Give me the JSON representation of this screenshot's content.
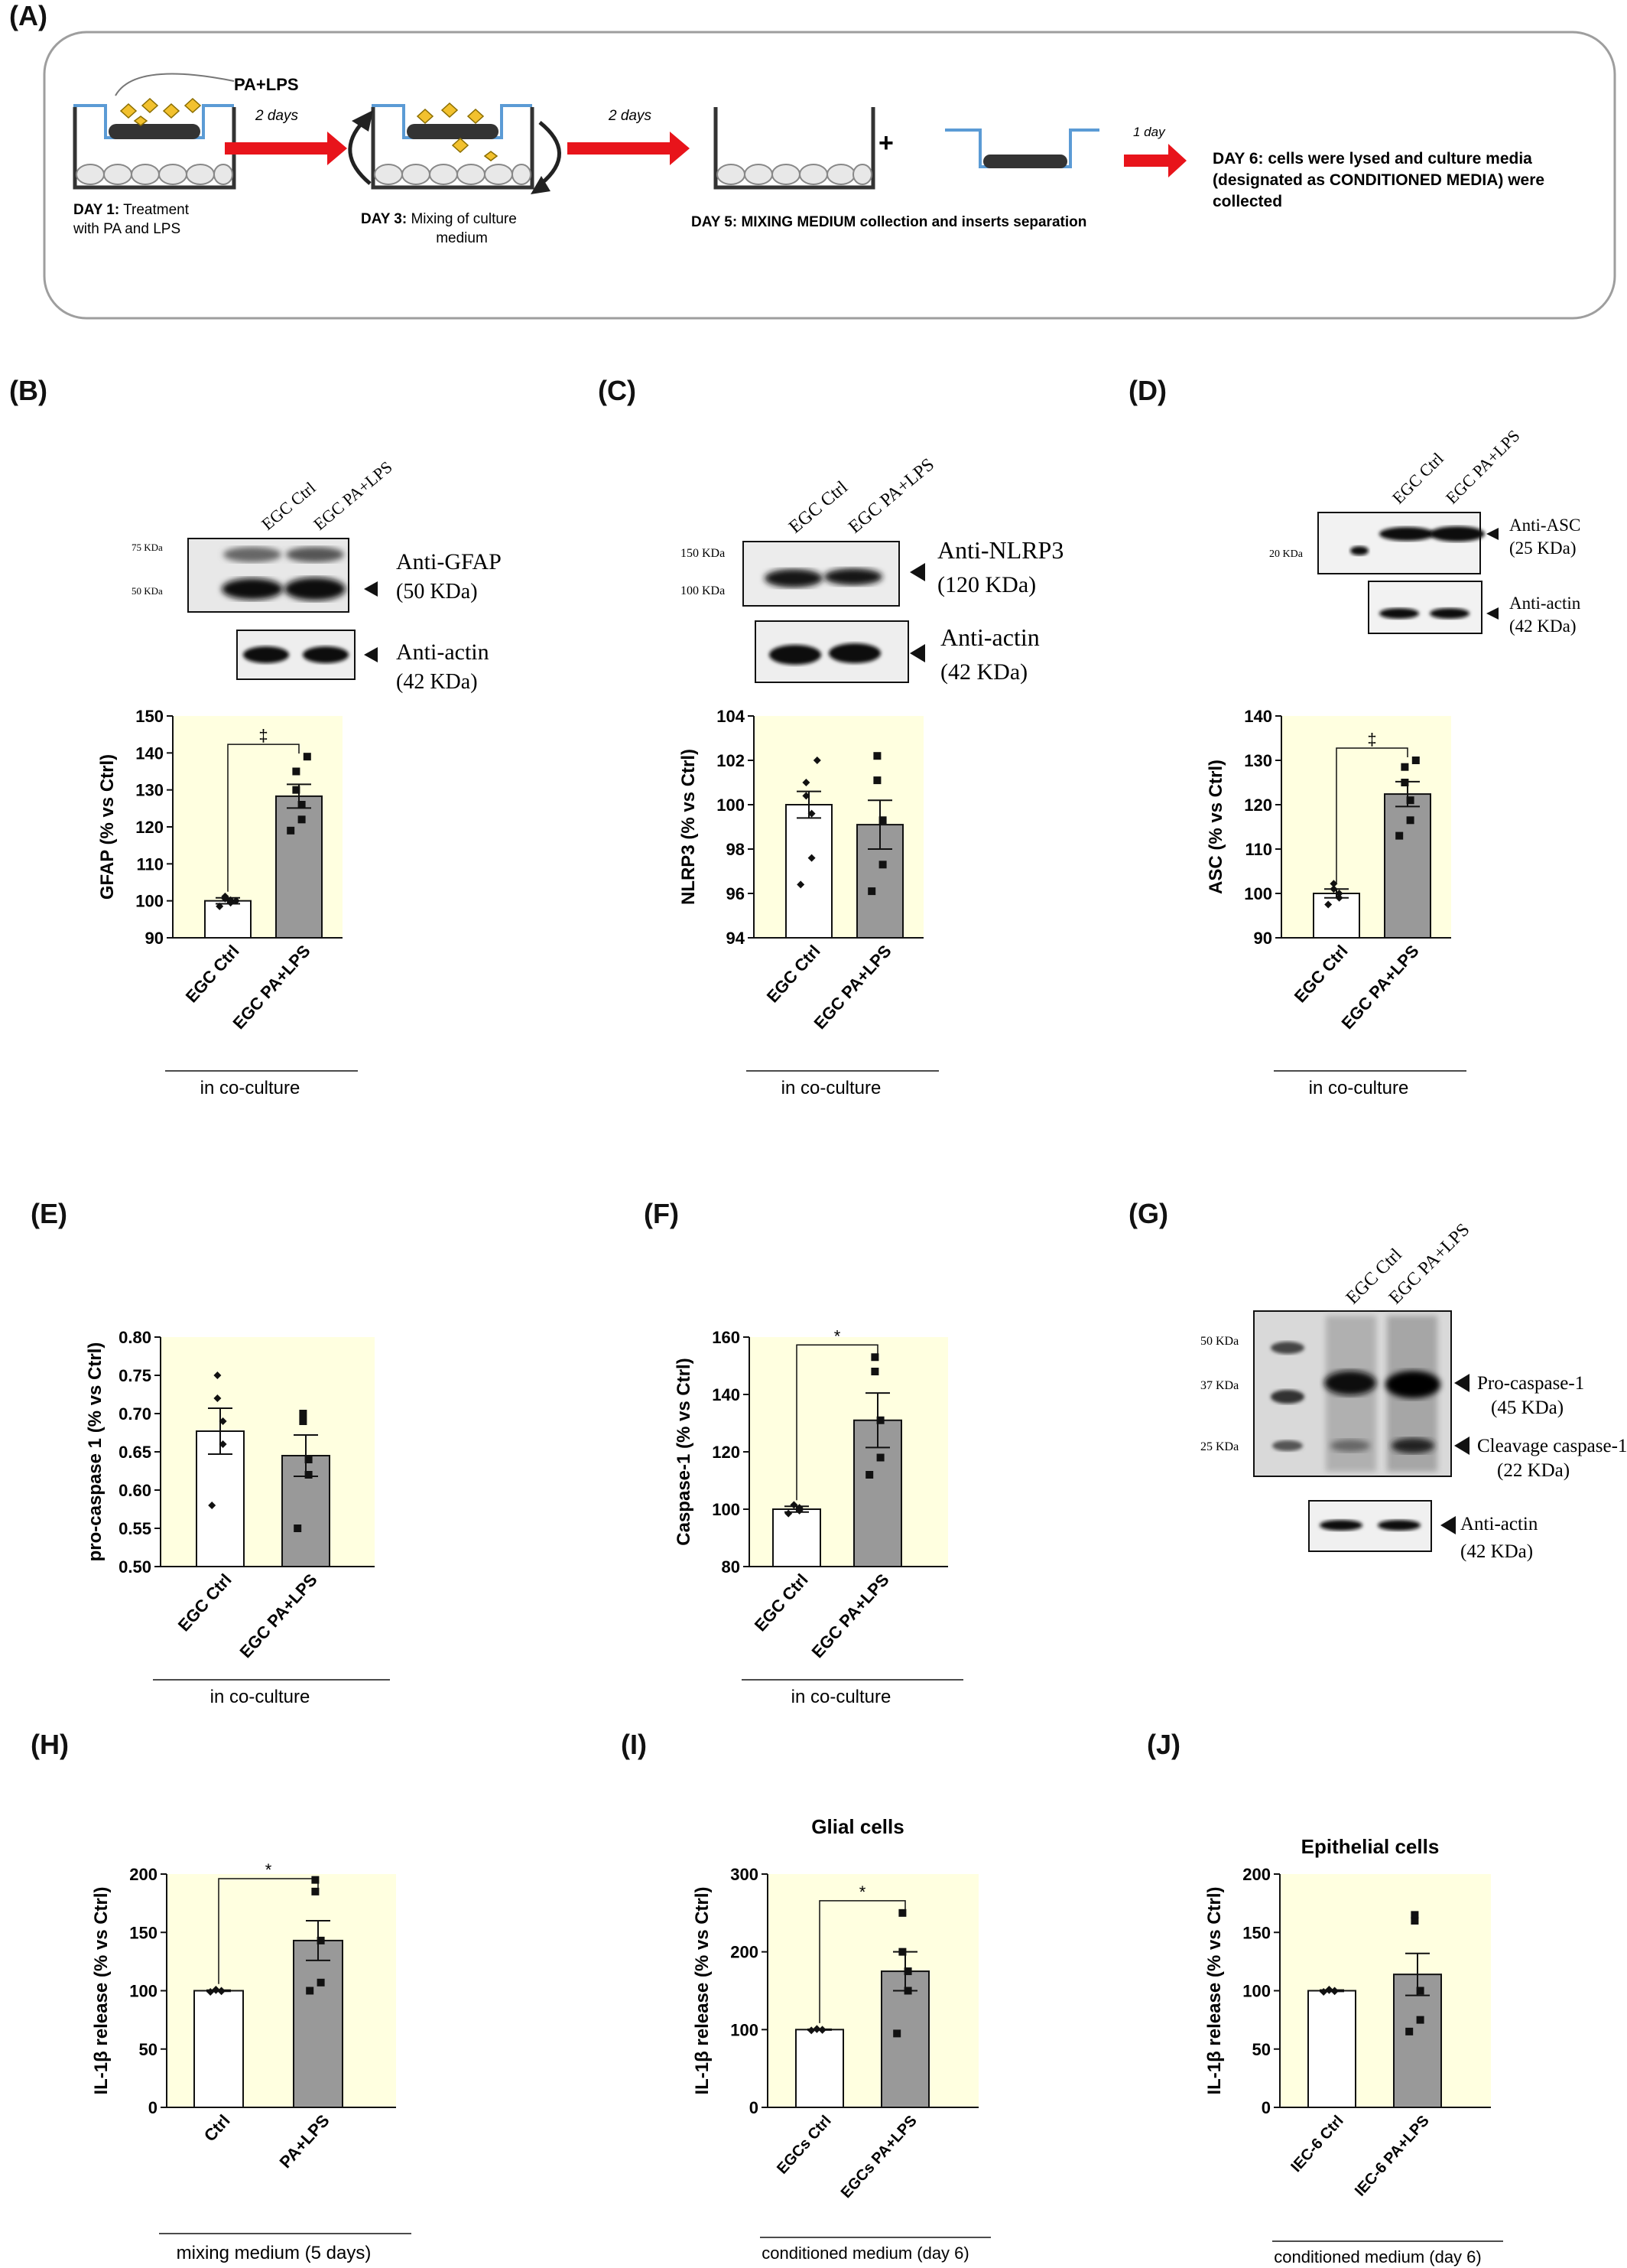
{
  "panel_labels": {
    "A": "(A)",
    "B": "(B)",
    "C": "(C)",
    "D": "(D)",
    "E": "(E)",
    "F": "(F)",
    "G": "(G)",
    "H": "(H)",
    "I": "(I)",
    "J": "(J)"
  },
  "schematic": {
    "treatment": "PA+LPS",
    "arrow1": "2 days",
    "arrow2": "2 days",
    "arrow3": "1 day",
    "plus": "+",
    "day1_bold": "DAY 1:",
    "day1_rest": " Treatment",
    "day1_line2": "with PA and LPS",
    "day3_bold": "DAY 3:",
    "day3_rest": " Mixing of culture",
    "day3_line2": "medium",
    "day5_bold": "DAY 5:",
    "day5_rest": " MIXING MEDIUM collection and inserts separation",
    "day6_bold": "DAY 6:",
    "day6_rest": " cells were lysed and culture media",
    "day6_line2": "(designated as CONDITIONED MEDIA) were",
    "day6_line3": "collected",
    "colors": {
      "arrow": "#e8141b",
      "insert": "#5b9bd5",
      "particle": "#f2c12e",
      "cell_dark": "#333333"
    }
  },
  "blots": {
    "B": {
      "lanes": [
        "EGC Ctrl",
        "EGC PA+LPS"
      ],
      "markers": [
        "75 KDa",
        "50 KDa"
      ],
      "band1": "Anti-GFAP",
      "band1_kda": "(50 KDa)",
      "band2": "Anti-actin",
      "band2_kda": "(42 KDa)"
    },
    "C": {
      "lanes": [
        "EGC Ctrl",
        "EGC PA+LPS"
      ],
      "markers": [
        "150 KDa",
        "100 KDa"
      ],
      "band1": "Anti-NLRP3",
      "band1_kda": "(120 KDa)",
      "band2": "Anti-actin",
      "band2_kda": "(42 KDa)"
    },
    "D": {
      "lanes": [
        "EGC Ctrl",
        "EGC PA+LPS"
      ],
      "markers": [
        "20 KDa"
      ],
      "band1": "Anti-ASC",
      "band1_kda": "(25 KDa)",
      "band2": "Anti-actin",
      "band2_kda": "(42 KDa)"
    },
    "G": {
      "lanes": [
        "EGC Ctrl",
        "EGC PA+LPS"
      ],
      "markers": [
        "50 KDa",
        "37 KDa",
        "25 KDa"
      ],
      "band1": "Pro-caspase-1",
      "band1_kda": "(45 KDa)",
      "band_mid": "Cleavage caspase-1",
      "band_mid_kda": "(22 KDa)",
      "band2": "Anti-actin",
      "band2_kda": "(42 KDa)"
    }
  },
  "chart_data": [
    {
      "id": "B",
      "type": "bar",
      "categories": [
        "EGC Ctrl",
        "EGC PA+LPS"
      ],
      "values": [
        100,
        128.3
      ],
      "errors": [
        0.8,
        3.2
      ],
      "points": [
        [
          98.5,
          99.5,
          100.2,
          100.6,
          101.2,
          100
        ],
        [
          119,
          122,
          126,
          130,
          135,
          139
        ]
      ],
      "ylabel": "GFAP (% vs Ctrl)",
      "ylim": [
        90,
        150
      ],
      "yticks": [
        90,
        100,
        110,
        120,
        130,
        140,
        150
      ],
      "significance": "‡",
      "group_label": "in co-culture",
      "colors": [
        "#ffffff",
        "#999999"
      ],
      "background": "#ffffe0"
    },
    {
      "id": "C",
      "type": "bar",
      "categories": [
        "EGC Ctrl",
        "EGC PA+LPS"
      ],
      "values": [
        100,
        99.1
      ],
      "errors": [
        0.6,
        1.1
      ],
      "points": [
        [
          96.4,
          97.6,
          99.6,
          100.4,
          101,
          102
        ],
        [
          96.1,
          97.3,
          99.3,
          101.1,
          102.2
        ]
      ],
      "ylabel": "NLRP3 (% vs Ctrl)",
      "ylim": [
        94,
        104
      ],
      "yticks": [
        94,
        96,
        98,
        100,
        102,
        104
      ],
      "significance": "",
      "group_label": "in co-culture",
      "colors": [
        "#ffffff",
        "#999999"
      ],
      "background": "#ffffe0"
    },
    {
      "id": "D",
      "type": "bar",
      "categories": [
        "EGC Ctrl",
        "EGC PA+LPS"
      ],
      "values": [
        100,
        122.4
      ],
      "errors": [
        1.0,
        2.8
      ],
      "points": [
        [
          97.5,
          99,
          100,
          101,
          102.2
        ],
        [
          113,
          116.5,
          121,
          125,
          128.5,
          130
        ]
      ],
      "ylabel": "ASC (% vs Ctrl)",
      "ylim": [
        90,
        140
      ],
      "yticks": [
        90,
        100,
        110,
        120,
        130,
        140
      ],
      "significance": "‡",
      "group_label": "in co-culture",
      "colors": [
        "#ffffff",
        "#999999"
      ],
      "background": "#ffffe0"
    },
    {
      "id": "E",
      "type": "bar",
      "categories": [
        "EGC Ctrl",
        "EGC PA+LPS"
      ],
      "values": [
        0.677,
        0.645
      ],
      "errors": [
        0.03,
        0.027
      ],
      "points": [
        [
          0.58,
          0.66,
          0.69,
          0.72,
          0.75
        ],
        [
          0.55,
          0.62,
          0.64,
          0.69,
          0.7
        ]
      ],
      "ylabel": "pro-caspase 1 (% vs Ctrl)",
      "ylim": [
        0.5,
        0.8
      ],
      "yticks": [
        0.5,
        0.55,
        0.6,
        0.65,
        0.7,
        0.75,
        0.8
      ],
      "significance": "",
      "group_label": "in co-culture",
      "colors": [
        "#ffffff",
        "#999999"
      ],
      "background": "#ffffe0"
    },
    {
      "id": "F",
      "type": "bar",
      "categories": [
        "EGC Ctrl",
        "EGC PA+LPS"
      ],
      "values": [
        100,
        131
      ],
      "errors": [
        1.0,
        9.5
      ],
      "points": [
        [
          98.5,
          99.5,
          100.5,
          101.5
        ],
        [
          112,
          118,
          131,
          148,
          153
        ]
      ],
      "ylabel": "Caspase-1 (% vs Ctrl)",
      "ylim": [
        80,
        160
      ],
      "yticks": [
        80,
        100,
        120,
        140,
        160
      ],
      "significance": "*",
      "group_label": "in co-culture",
      "colors": [
        "#ffffff",
        "#999999"
      ],
      "background": "#ffffe0"
    },
    {
      "id": "H",
      "type": "bar",
      "categories": [
        "Ctrl",
        "PA+LPS"
      ],
      "values": [
        100,
        143
      ],
      "errors": [
        0.5,
        17
      ],
      "points": [
        [
          99,
          99.5,
          100,
          100.5,
          101
        ],
        [
          100,
          107,
          143,
          185,
          195
        ]
      ],
      "ylabel": "IL-1β release (% vs Ctrl)",
      "ylim": [
        0,
        200
      ],
      "yticks": [
        0,
        50,
        100,
        150,
        200
      ],
      "significance": "*",
      "group_label": "mixing medium (5 days)",
      "colors": [
        "#ffffff",
        "#999999"
      ],
      "background": "#ffffe0"
    },
    {
      "id": "I",
      "type": "bar",
      "title": "Glial cells",
      "categories": [
        "EGCs Ctrl",
        "EGCs PA+LPS"
      ],
      "values": [
        100,
        175
      ],
      "errors": [
        0.5,
        25
      ],
      "points": [
        [
          99,
          99.5,
          100,
          100.5,
          101
        ],
        [
          95,
          150,
          175,
          200,
          250
        ]
      ],
      "ylabel": "IL-1β release (% vs Ctrl)",
      "ylim": [
        0,
        300
      ],
      "yticks": [
        0,
        100,
        200,
        300
      ],
      "significance": "*",
      "group_label": "conditioned medium (day 6)",
      "colors": [
        "#ffffff",
        "#999999"
      ],
      "background": "#ffffe0"
    },
    {
      "id": "J",
      "type": "bar",
      "title": "Epithelial cells",
      "categories": [
        "IEC-6 Ctrl",
        "IEC-6 PA+LPS"
      ],
      "values": [
        100,
        114
      ],
      "errors": [
        0.6,
        18
      ],
      "points": [
        [
          99,
          99.5,
          100,
          100.5,
          101
        ],
        [
          65,
          75,
          100,
          160,
          165
        ]
      ],
      "ylabel": "IL-1β release (% vs Ctrl)",
      "ylim": [
        0,
        200
      ],
      "yticks": [
        0,
        50,
        100,
        150,
        200
      ],
      "significance": "",
      "group_label": "conditioned medium (day 6)",
      "colors": [
        "#ffffff",
        "#999999"
      ],
      "background": "#ffffe0"
    }
  ]
}
